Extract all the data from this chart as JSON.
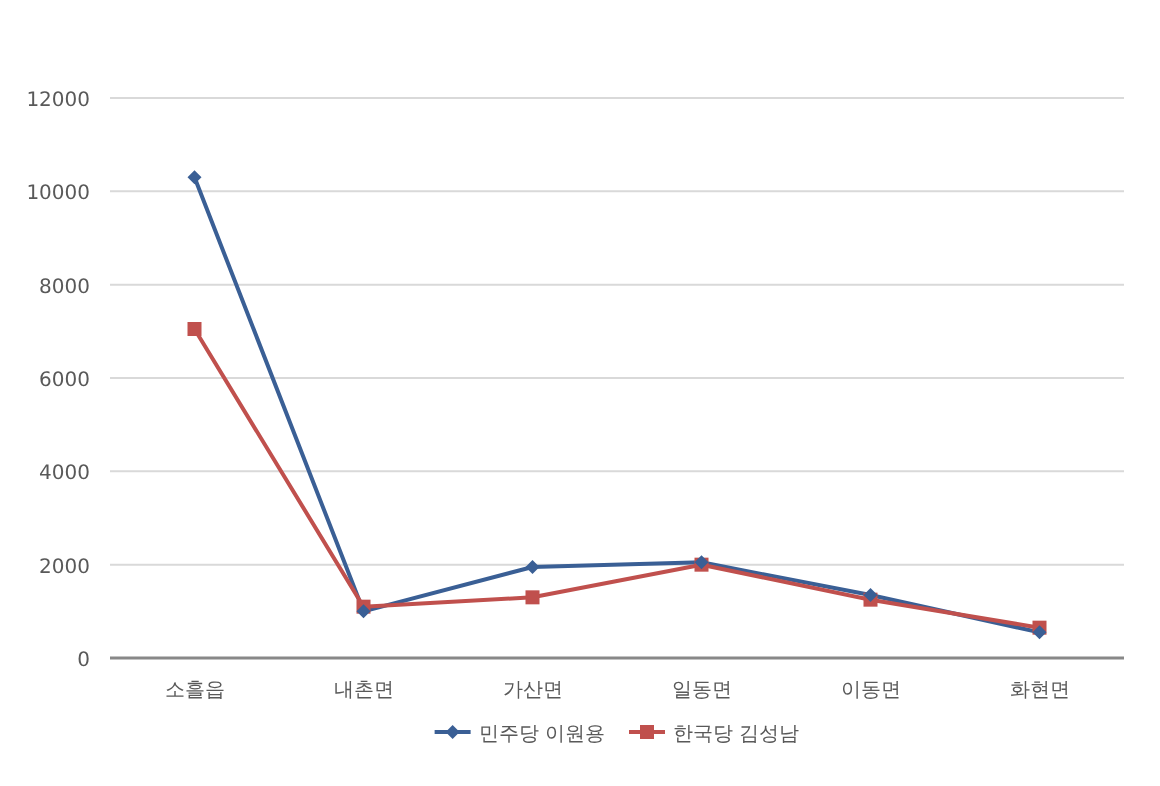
{
  "chart_data": {
    "type": "line",
    "categories": [
      "소흘읍",
      "내촌면",
      "가산면",
      "일동면",
      "이동면",
      "화현면"
    ],
    "series": [
      {
        "name": "민주당 이원용",
        "color": "#3a5f95",
        "marker": "diamond",
        "values": [
          10300,
          1000,
          1950,
          2050,
          1350,
          550
        ]
      },
      {
        "name": "한국당 김성남",
        "color": "#c0504d",
        "marker": "square",
        "values": [
          7050,
          1100,
          1300,
          2000,
          1250,
          650
        ]
      }
    ],
    "ylim": [
      0,
      12000
    ],
    "yticks": [
      0,
      2000,
      4000,
      6000,
      8000,
      10000,
      12000
    ],
    "grid": "y",
    "legend": "bottom"
  }
}
